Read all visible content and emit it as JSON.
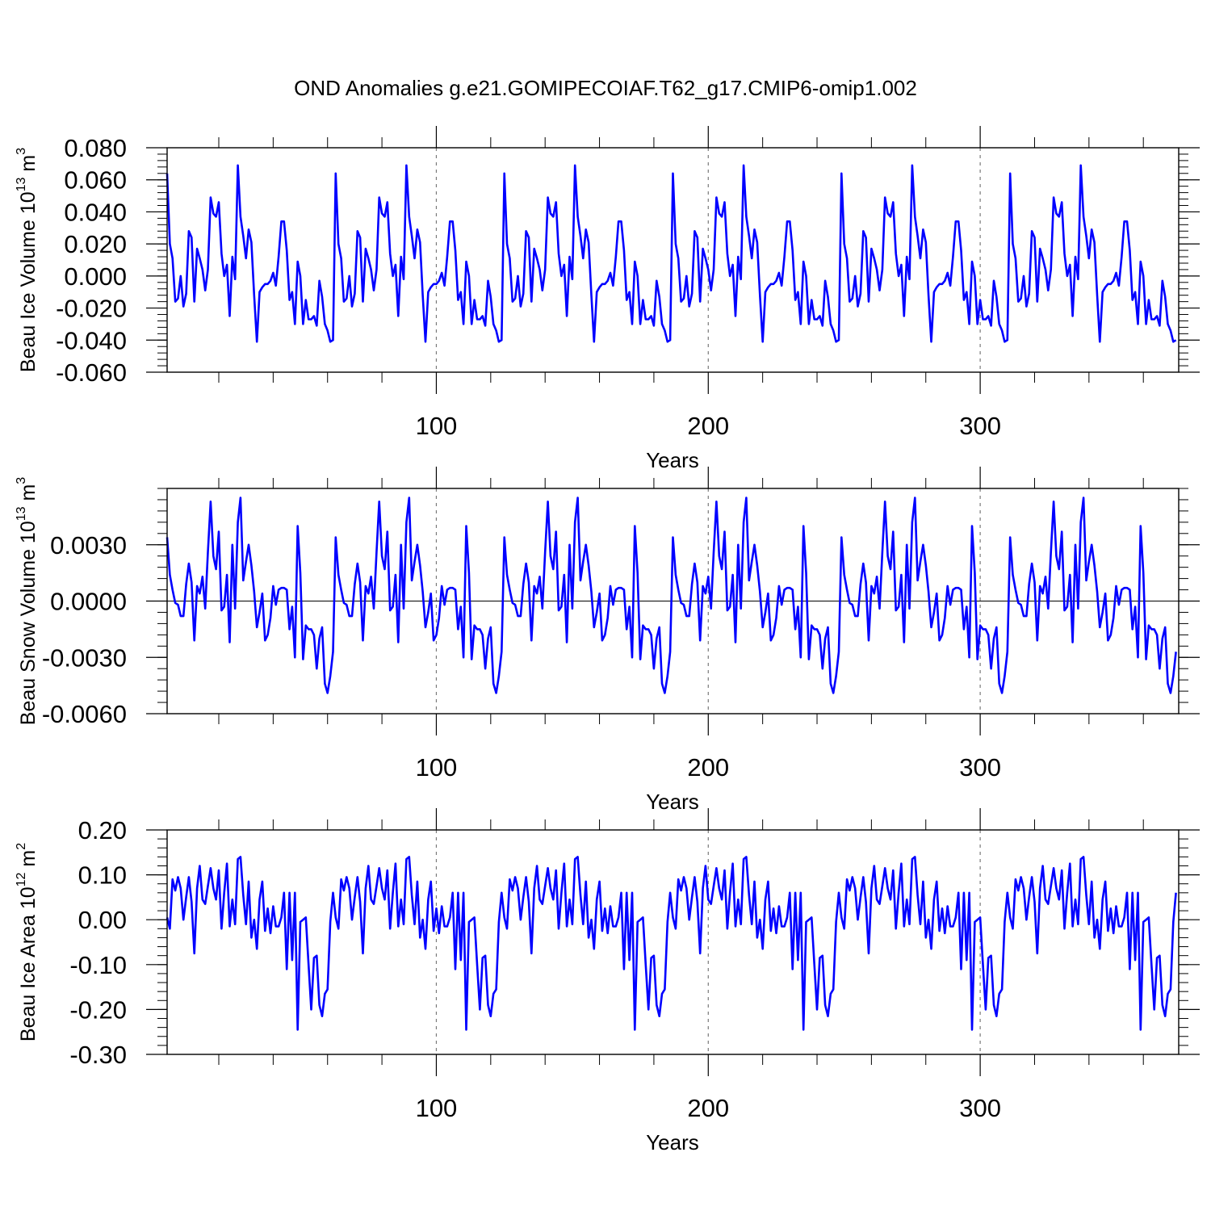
{
  "chart_data": {
    "title": "OND Anomalies g.e21.GOMIPECOIAF.T62_g17.CMIP6-omip1.002",
    "type": "line",
    "xlim": [
      1,
      373
    ],
    "x_ticks": [
      100,
      200,
      300
    ],
    "x_tick_labels": [
      "100",
      "200",
      "300"
    ],
    "x_label": "Years",
    "reference_lines": [
      100,
      200,
      300
    ],
    "series_color": "#0000ff",
    "cycle": {
      "length": 62,
      "starts": [
        1,
        63,
        125,
        187,
        249,
        311
      ],
      "repeat_note": "the 62-year forcing cycle repeats six times"
    },
    "panels": [
      {
        "name": "Beau Ice Volume",
        "ylabel_base": "Beau Ice Volume 10",
        "ylabel_exp": "13",
        "ylabel_unit": " m",
        "ylabel_unit_exp": "3",
        "ylim": [
          -0.06,
          0.08
        ],
        "y_ticks": [
          -0.06,
          -0.04,
          -0.02,
          0.0,
          0.02,
          0.04,
          0.06,
          0.08
        ],
        "y_tick_labels": [
          "-0.060",
          "-0.040",
          "-0.020",
          "0.000",
          "0.020",
          "0.040",
          "0.060",
          "0.080"
        ],
        "cycle_values": [
          0.064,
          0.02,
          0.011,
          -0.016,
          -0.014,
          0.0,
          -0.019,
          -0.011,
          0.028,
          0.024,
          -0.016,
          0.017,
          0.011,
          0.004,
          -0.009,
          0.004,
          0.049,
          0.039,
          0.037,
          0.046,
          0.014,
          0.0,
          0.007,
          -0.025,
          0.012,
          -0.002,
          0.069,
          0.037,
          0.025,
          0.011,
          0.029,
          0.021,
          -0.012,
          -0.041,
          -0.01,
          -0.007,
          -0.005,
          -0.005,
          -0.003,
          0.002,
          -0.006,
          0.012,
          0.034,
          0.034,
          0.016,
          -0.015,
          -0.01,
          -0.03,
          0.009,
          0.0,
          -0.03,
          -0.015,
          -0.027,
          -0.027,
          -0.025,
          -0.031,
          -0.003,
          -0.013,
          -0.03,
          -0.034,
          -0.041,
          -0.04
        ],
        "cycle_values_2": [
          0.064,
          0.02,
          0.011,
          -0.016,
          -0.014,
          0.0,
          -0.019,
          -0.011,
          0.028,
          0.024,
          -0.016,
          0.017,
          0.011,
          0.004,
          -0.009,
          0.004,
          0.049,
          0.039,
          0.037,
          0.046,
          0.014,
          0.0,
          0.007,
          -0.025,
          0.012,
          -0.002,
          0.069,
          0.037,
          0.025,
          0.011,
          0.029,
          0.021,
          -0.012,
          -0.041,
          -0.01,
          -0.007,
          -0.005,
          -0.005,
          -0.003,
          0.002,
          -0.006,
          0.012,
          0.034,
          0.034,
          0.016,
          -0.015,
          -0.01,
          -0.03,
          0.009,
          0.0,
          -0.03,
          -0.015,
          -0.027,
          -0.027,
          -0.025,
          -0.031,
          -0.003,
          -0.013,
          -0.03,
          -0.034,
          -0.041,
          -0.04
        ]
      },
      {
        "name": "Beau Snow Volume",
        "ylabel_base": "Beau Snow Volume 10",
        "ylabel_exp": "13",
        "ylabel_unit": " m",
        "ylabel_unit_exp": "3",
        "ylim": [
          -0.006,
          0.006
        ],
        "y_ticks": [
          -0.006,
          -0.003,
          0.0,
          0.003
        ],
        "y_tick_labels": [
          "-0.0060",
          "-0.0030",
          "0.0000",
          "0.0030"
        ],
        "cycle_values": [
          0.0034,
          0.0014,
          0.0006,
          -0.0001,
          -0.0002,
          -0.0008,
          -0.0008,
          0.0009,
          0.002,
          0.001,
          -0.0021,
          0.0008,
          0.0004,
          0.0013,
          -0.0004,
          0.0026,
          0.0053,
          0.0024,
          0.0017,
          0.0037,
          -0.0005,
          -0.0003,
          0.0014,
          -0.0022,
          0.003,
          -0.0004,
          0.0042,
          0.0055,
          0.0011,
          0.0021,
          0.003,
          0.0019,
          0.0005,
          -0.0014,
          -0.0006,
          0.0004,
          -0.0021,
          -0.0018,
          -0.0009,
          0.0008,
          -0.0002,
          0.0006,
          0.0007,
          0.0007,
          0.0006,
          -0.0015,
          -0.0003,
          -0.003,
          0.004,
          0.0015,
          -0.0031,
          -0.0013,
          -0.0015,
          -0.0015,
          -0.0018,
          -0.0036,
          -0.002,
          -0.0014,
          -0.0044,
          -0.0049,
          -0.004,
          -0.0027
        ],
        "cycle_values_2": [
          0.0034,
          0.0014,
          0.0006,
          -0.0001,
          -0.0002,
          -0.0008,
          -0.0008,
          0.0009,
          0.002,
          0.001,
          -0.0021,
          0.0008,
          0.0004,
          0.0013,
          -0.0004,
          0.0026,
          0.0053,
          0.0024,
          0.0017,
          0.0037,
          -0.0005,
          -0.0003,
          0.0014,
          -0.0022,
          0.003,
          -0.0004,
          0.0042,
          0.0055,
          0.0011,
          0.0021,
          0.003,
          0.0019,
          0.0005,
          -0.0014,
          -0.0006,
          0.0004,
          -0.0021,
          -0.0018,
          -0.0009,
          0.0008,
          -0.0002,
          0.0006,
          0.0007,
          0.0007,
          0.0006,
          -0.0015,
          -0.0003,
          -0.003,
          0.004,
          0.0015,
          -0.0031,
          -0.0013,
          -0.0015,
          -0.0015,
          -0.0018,
          -0.0036,
          -0.002,
          -0.0014,
          -0.0044,
          -0.0049,
          -0.004,
          -0.0027
        ]
      },
      {
        "name": "Beau Ice Area",
        "ylabel_base": "Beau Ice Area 10",
        "ylabel_exp": "12",
        "ylabel_unit": " m",
        "ylabel_unit_exp": "2",
        "ylim": [
          -0.3,
          0.2
        ],
        "y_ticks": [
          -0.3,
          -0.2,
          -0.1,
          0.0,
          0.1,
          0.2
        ],
        "y_tick_labels": [
          "-0.30",
          "-0.20",
          "-0.10",
          "0.00",
          "0.10",
          "0.20"
        ],
        "cycle_values": [
          0.005,
          -0.02,
          0.09,
          0.065,
          0.095,
          0.07,
          0.0,
          0.05,
          0.095,
          0.04,
          -0.075,
          0.07,
          0.12,
          0.045,
          0.035,
          0.075,
          0.115,
          0.07,
          0.045,
          0.11,
          -0.02,
          0.06,
          0.125,
          -0.015,
          0.045,
          -0.01,
          0.135,
          0.14,
          0.055,
          -0.01,
          0.085,
          -0.04,
          0.0,
          -0.065,
          0.045,
          0.085,
          -0.025,
          0.025,
          -0.03,
          0.03,
          -0.015,
          -0.015,
          0.005,
          0.06,
          -0.11,
          0.06,
          -0.09,
          0.06,
          -0.245,
          -0.005,
          0.0,
          0.005,
          -0.1,
          -0.2,
          -0.085,
          -0.08,
          -0.19,
          -0.215,
          -0.165,
          -0.155,
          -0.005,
          0.06
        ],
        "cycle_values_2": [
          0.005,
          -0.02,
          0.09,
          0.065,
          0.095,
          0.07,
          0.0,
          0.05,
          0.095,
          0.04,
          -0.075,
          0.07,
          0.12,
          0.045,
          0.035,
          0.075,
          0.115,
          0.07,
          0.045,
          0.11,
          -0.02,
          0.06,
          0.125,
          -0.015,
          0.045,
          -0.01,
          0.135,
          0.14,
          0.055,
          -0.01,
          0.085,
          -0.04,
          0.0,
          -0.065,
          0.045,
          0.085,
          -0.025,
          0.025,
          -0.03,
          0.03,
          -0.015,
          -0.015,
          0.005,
          0.06,
          -0.11,
          0.06,
          -0.09,
          0.06,
          -0.245,
          -0.005,
          0.0,
          0.005,
          -0.1,
          -0.2,
          -0.085,
          -0.08,
          -0.19,
          -0.215,
          -0.165,
          -0.155,
          -0.005,
          0.06
        ]
      }
    ]
  }
}
